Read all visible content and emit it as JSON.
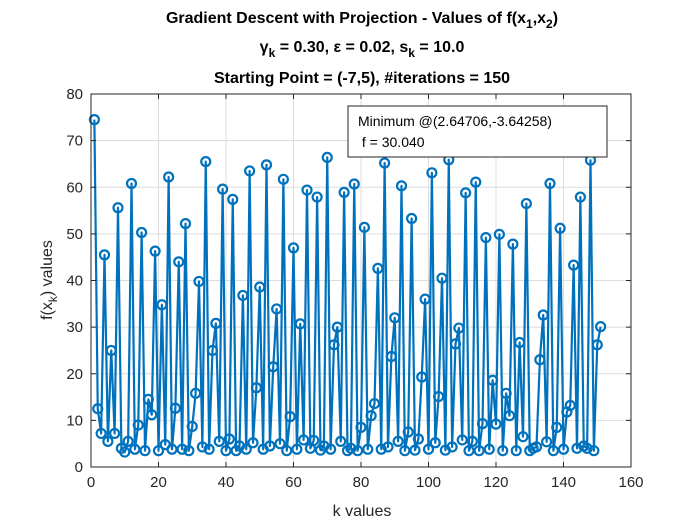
{
  "chart_data": {
    "type": "line",
    "title_lines": [
      "Gradient Descent with Projection - Values of f(x",
      "γ",
      "Starting Point = (-7,5),  #iterations = 150"
    ],
    "title": {
      "line1_prefix": "Gradient Descent with Projection - Values of f(x",
      "line1_sub1": "1",
      "line1_mid": ",x",
      "line1_sub2": "2",
      "line1_suffix": ")",
      "line2_gamma": "γ",
      "line2_sub_k": "k",
      "line2_mid": " = 0.30, ε = 0.02, s",
      "line2_sub_k2": "k",
      "line2_end": " = 10.0",
      "line3": "Starting Point = (-7,5),  #iterations = 150"
    },
    "xlabel": "k values",
    "ylabel": {
      "prefix": "f(x",
      "sub": "k",
      "suffix": ") values"
    },
    "xlim": [
      0,
      160
    ],
    "ylim": [
      0,
      80
    ],
    "xticks": [
      "0",
      "20",
      "40",
      "60",
      "80",
      "100",
      "120",
      "140",
      "160"
    ],
    "yticks": [
      "0",
      "10",
      "20",
      "30",
      "40",
      "50",
      "60",
      "70",
      "80"
    ],
    "grid": true,
    "legend_placement": "top-right",
    "legend": {
      "line1": "Minimum @(2.64706,-3.64258)",
      "line2": " f = 30.040"
    },
    "series_color": "#0072BD",
    "series": [
      {
        "x": [
          1,
          2,
          3,
          4,
          5,
          6,
          7,
          8,
          9,
          10,
          11,
          12,
          13,
          14,
          15,
          16,
          17,
          18,
          19,
          20,
          21,
          22,
          23,
          24,
          25,
          26,
          27,
          28,
          29,
          30,
          31,
          32,
          33,
          34,
          35,
          36,
          37,
          38,
          39,
          40,
          41,
          42,
          43,
          44,
          45,
          46,
          47,
          48,
          49,
          50,
          51,
          52,
          53,
          54,
          55,
          56,
          57,
          58,
          59,
          60,
          61,
          62,
          63,
          64,
          65,
          66,
          67,
          68,
          69,
          70,
          71,
          72,
          73,
          74,
          75,
          76,
          77,
          78,
          79,
          80,
          81,
          82,
          83,
          84,
          85,
          86,
          87,
          88,
          89,
          90,
          91,
          92,
          93,
          94,
          95,
          96,
          97,
          98,
          99,
          100,
          101,
          102,
          103,
          104,
          105,
          106,
          107,
          108,
          109,
          110,
          111,
          112,
          113,
          114,
          115,
          116,
          117,
          118,
          119,
          120,
          121,
          122,
          123,
          124,
          125,
          126,
          127,
          128,
          129,
          130,
          131,
          132,
          133,
          134,
          135,
          136,
          137,
          138,
          139,
          140,
          141,
          142,
          143,
          144,
          145,
          146,
          147,
          148,
          149,
          150,
          151
        ],
        "values": [
          74.5,
          12.5,
          7.2,
          45.5,
          5.5,
          25,
          7.2,
          55.6,
          4,
          3.2,
          5.5,
          60.8,
          3.8,
          9,
          50.3,
          3.5,
          14.5,
          11.2,
          46.3,
          3.5,
          34.8,
          4.8,
          62.2,
          3.8,
          12.6,
          44,
          3.8,
          52.2,
          3.5,
          8.7,
          15.8,
          39.8,
          4.3,
          65.5,
          3.8,
          25,
          30.8,
          5.5,
          59.6,
          3.5,
          6,
          57.4,
          3.5,
          4.5,
          36.8,
          3.8,
          63.5,
          5.2,
          17,
          38.6,
          3.8,
          64.8,
          4.5,
          21.5,
          33.9,
          5,
          61.7,
          3.5,
          10.8,
          47,
          3.8,
          30.7,
          5.8,
          59.4,
          4,
          5.7,
          57.9,
          3.6,
          4.5,
          66.4,
          3.8,
          26.2,
          30,
          5.5,
          58.9,
          3.5,
          4,
          60.7,
          3.5,
          8.5,
          51.4,
          3.8,
          11,
          13.6,
          42.6,
          3.8,
          65.2,
          4.3,
          23.7,
          32,
          5.5,
          60.3,
          3.5,
          7.5,
          53.3,
          3.6,
          6,
          19.3,
          36,
          3.8,
          63.1,
          5.2,
          15.1,
          40.5,
          3.6,
          65.9,
          4.3,
          26.4,
          29.8,
          5.8,
          58.8,
          3.5,
          5.5,
          61.1,
          3.5,
          9.3,
          49.2,
          3.8,
          18.6,
          9.2,
          49.9,
          3.5,
          15.8,
          11,
          47.8,
          3.5,
          26.7,
          6.5,
          56.5,
          3.5,
          4,
          4.3,
          23,
          32.6,
          5.4,
          60.8,
          3.5,
          8.5,
          51.2,
          3.8,
          11.8,
          13.2,
          43.3,
          4,
          57.9,
          4.5,
          4,
          65.8,
          3.5,
          26.2,
          30.1
        ]
      }
    ]
  }
}
